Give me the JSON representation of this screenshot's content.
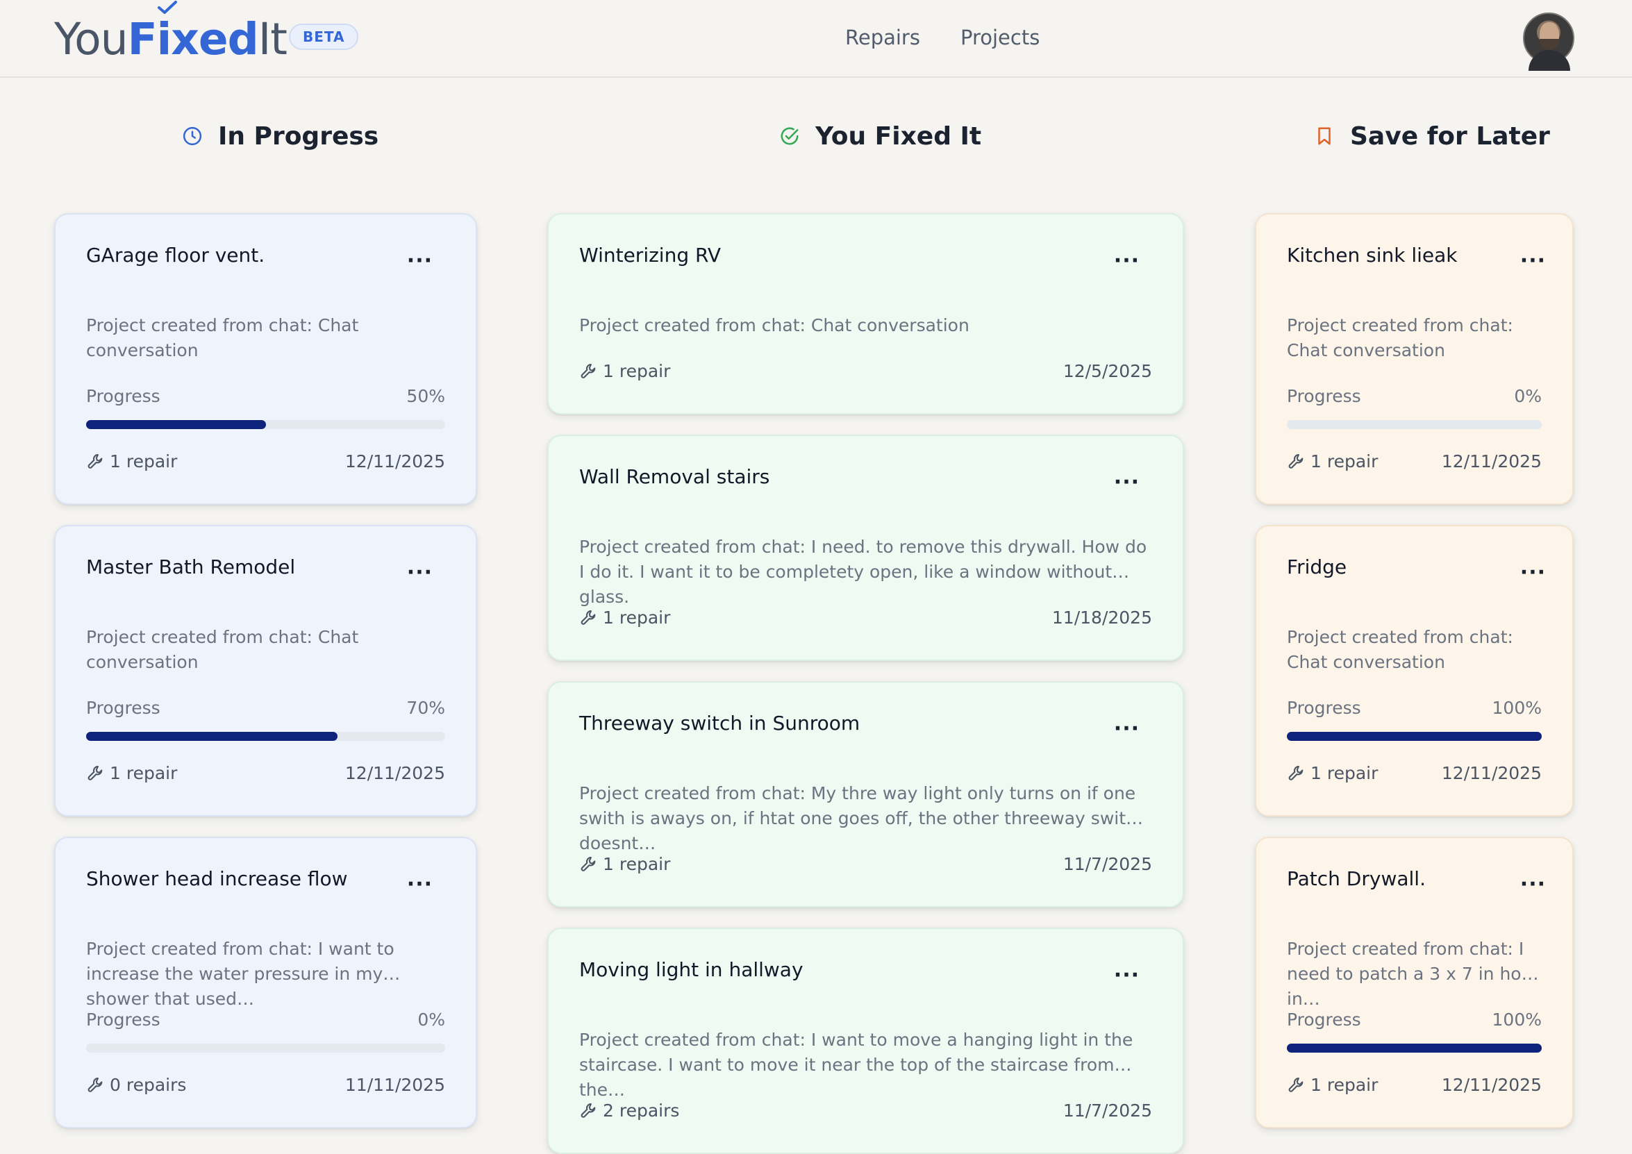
{
  "header": {
    "logo": {
      "you": "You",
      "fixed": "Fixed",
      "it": "It"
    },
    "beta": "BETA",
    "nav": [
      "Repairs",
      "Projects"
    ]
  },
  "columns": [
    {
      "title": "In Progress",
      "icon": "clock-icon",
      "accent": "#3566d6",
      "cards": [
        {
          "title": "GArage floor vent.",
          "desc": "Project created from chat: Chat conversation",
          "progress_label": "Progress",
          "progress": "50%",
          "repairs": "1 repair",
          "date": "12/11/2025"
        },
        {
          "title": "Master Bath Remodel",
          "desc": "Project created from chat: Chat conversation",
          "progress_label": "Progress",
          "progress": "70%",
          "repairs": "1 repair",
          "date": "12/11/2025"
        },
        {
          "title": "Shower head increase flow",
          "desc": "Project created from chat: I want to increase the water pressure in my shower that used…",
          "progress_label": "Progress",
          "progress": "0%",
          "repairs": "0 repairs",
          "date": "11/11/2025"
        }
      ]
    },
    {
      "title": "You Fixed It",
      "icon": "check-circle-icon",
      "accent": "#34a853",
      "cards": [
        {
          "title": "Winterizing RV",
          "desc": "Project created from chat: Chat conversation",
          "repairs": "1 repair",
          "date": "12/5/2025"
        },
        {
          "title": "Wall Removal stairs",
          "desc": "Project created from chat: I need. to remove this drywall. How do I do it. I want it to be completety open, like a window without glass.",
          "repairs": "1 repair",
          "date": "11/18/2025"
        },
        {
          "title": "Threeway switch in Sunroom",
          "desc": "Project created from chat: My thre way light only turns on if one swith is aways on, if htat one goes off, the other threeway switch doesnt…",
          "repairs": "1 repair",
          "date": "11/7/2025"
        },
        {
          "title": "Moving light in hallway",
          "desc": "Project created from chat: I want to move a hanging light in the staircase. I want to move it near the top of the staircase from the…",
          "repairs": "2 repairs",
          "date": "11/7/2025"
        }
      ]
    },
    {
      "title": "Save for Later",
      "icon": "bookmark-icon",
      "accent": "#e0622a",
      "cards": [
        {
          "title": "Kitchen sink lieak",
          "desc": "Project created from chat: Chat conversation",
          "progress_label": "Progress",
          "progress": "0%",
          "repairs": "1 repair",
          "date": "12/11/2025"
        },
        {
          "title": "Fridge",
          "desc": "Project created from chat: Chat conversation",
          "progress_label": "Progress",
          "progress": "100%",
          "repairs": "1 repair",
          "date": "12/11/2025"
        },
        {
          "title": "Patch Drywall.",
          "desc": "Project created from chat: I need to patch a 3 x 7 in hole in…",
          "progress_label": "Progress",
          "progress": "100%",
          "repairs": "1 repair",
          "date": "12/11/2025"
        }
      ]
    }
  ],
  "colors": {
    "bar_fill": "#0e237c",
    "bar_track": "#e4e8ef",
    "brand": "#3566d6"
  }
}
